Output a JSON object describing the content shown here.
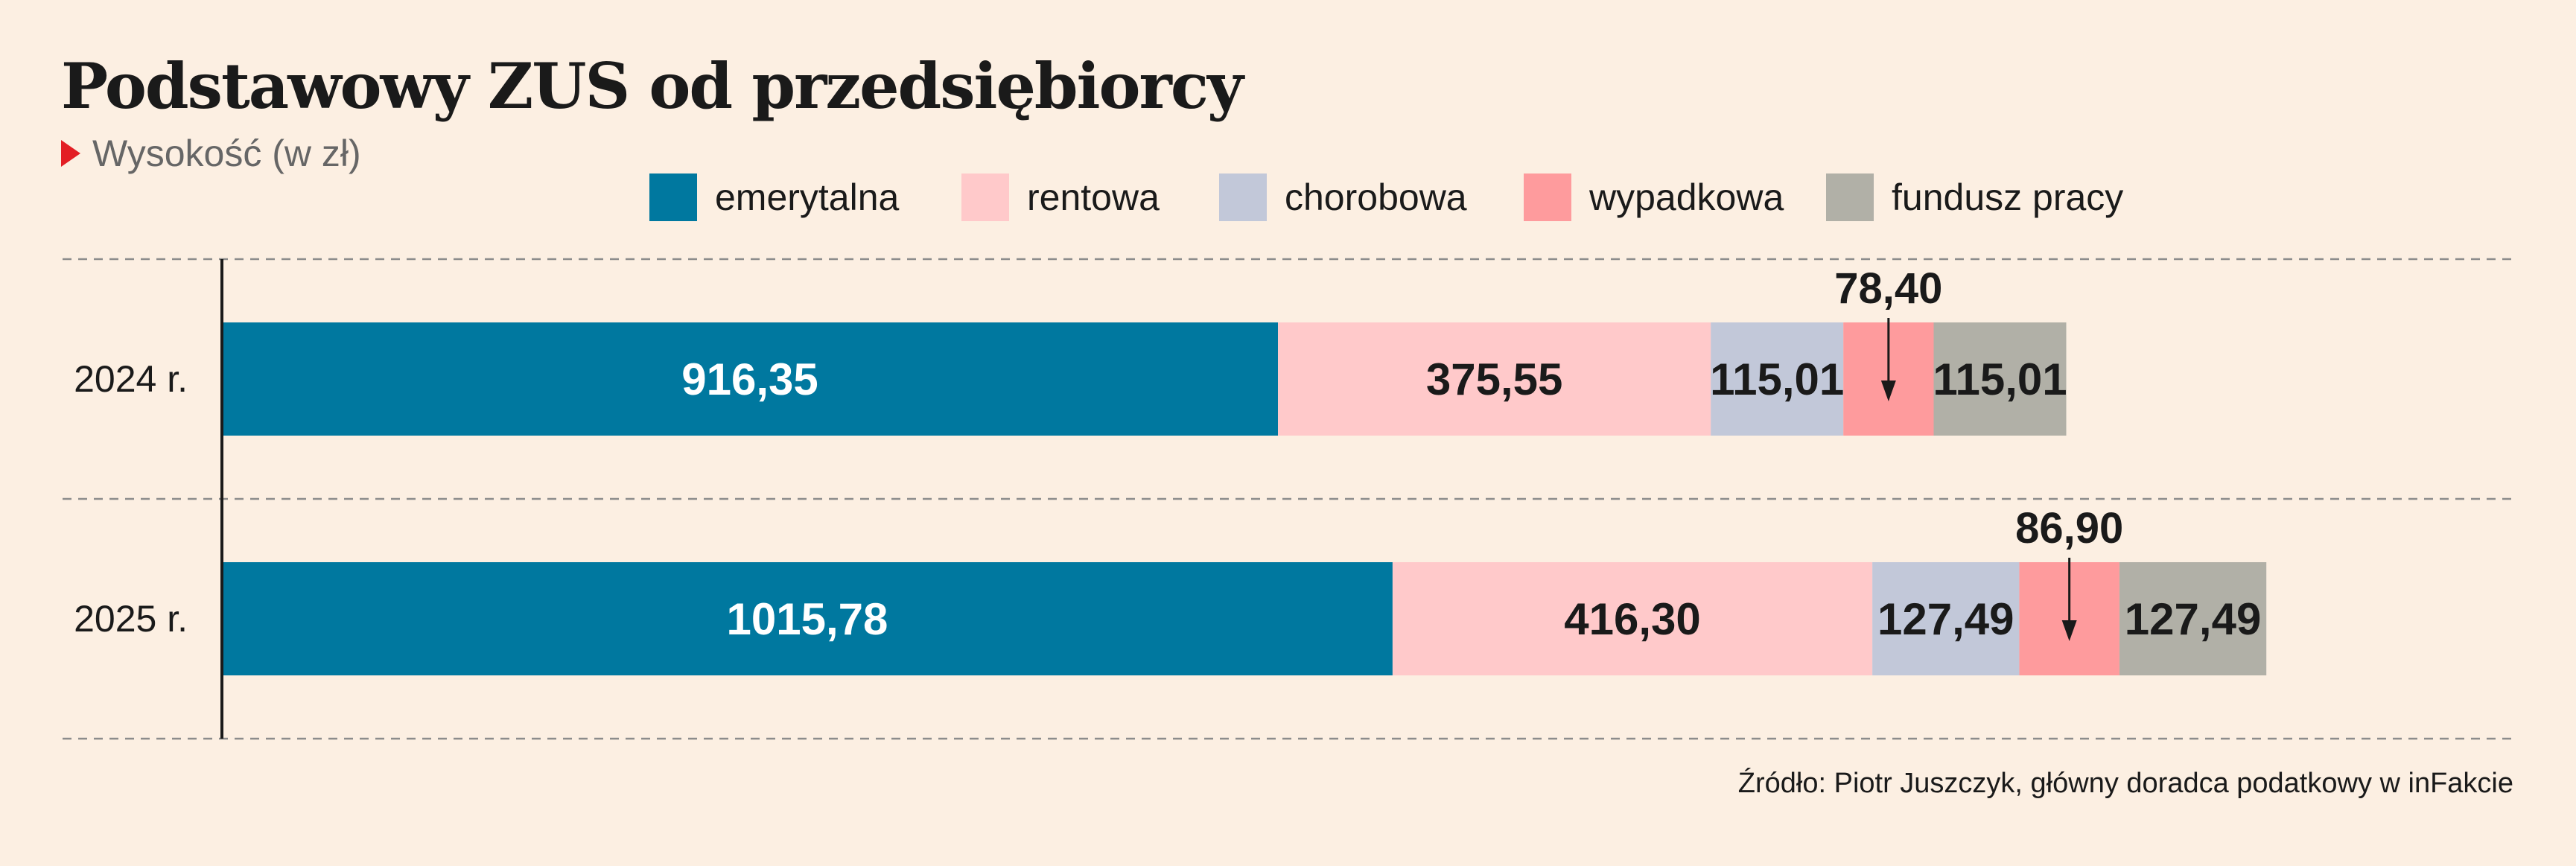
{
  "header": {
    "title": "Podstawowy ZUS od przedsiębiorcy",
    "subtitle": "Wysokość (w zł)"
  },
  "footer": {
    "source": "Źródło: Piotr Juszczyk, główny doradca podatkowy w inFakcie"
  },
  "colors": {
    "emerytalna": "#00789f",
    "rentowa": "#ffc9ca",
    "chorobowa": "#c2c8d9",
    "wypadkowa": "#fe9b9d",
    "fundusz pracy": "#b1b0a7"
  },
  "chart_data": {
    "type": "bar",
    "orientation": "horizontal",
    "stacked": true,
    "categories": [
      "2024 r.",
      "2025 r."
    ],
    "series": [
      {
        "name": "emerytalna",
        "values": [
          916.35,
          1015.78
        ],
        "labels": [
          "916,35",
          "1015,78"
        ]
      },
      {
        "name": "rentowa",
        "values": [
          375.55,
          416.3
        ],
        "labels": [
          "375,55",
          "416,30"
        ]
      },
      {
        "name": "chorobowa",
        "values": [
          115.01,
          127.49
        ],
        "labels": [
          "115,01",
          "127,49"
        ]
      },
      {
        "name": "wypadkowa",
        "values": [
          78.4,
          86.9
        ],
        "labels": [
          "78,40",
          "86,90"
        ]
      },
      {
        "name": "fundusz pracy",
        "values": [
          115.01,
          127.49
        ],
        "labels": [
          "115,01",
          "127,49"
        ]
      }
    ],
    "legend_position": "top",
    "grid": "horizontal dashed"
  }
}
